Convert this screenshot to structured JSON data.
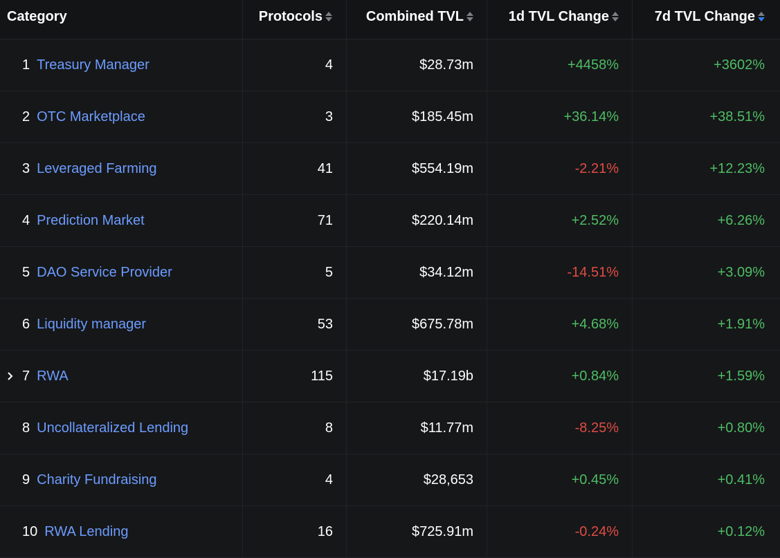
{
  "columns": {
    "category": "Category",
    "protocols": "Protocols",
    "combined_tvl": "Combined TVL",
    "change_1d": "1d TVL Change",
    "change_7d": "7d TVL Change"
  },
  "sort": {
    "column": "change_7d",
    "direction": "desc",
    "active_color": "#2f80ed"
  },
  "colors": {
    "link": "#6c9cff",
    "positive": "#4ebd64",
    "negative": "#e04c44"
  },
  "rows": [
    {
      "rank": "1",
      "name": "Treasury Manager",
      "protocols": "4",
      "tvl": "$28.73m",
      "change_1d": "+4458%",
      "change_7d": "+3602%",
      "expandable": false
    },
    {
      "rank": "2",
      "name": "OTC Marketplace",
      "protocols": "3",
      "tvl": "$185.45m",
      "change_1d": "+36.14%",
      "change_7d": "+38.51%",
      "expandable": false
    },
    {
      "rank": "3",
      "name": "Leveraged Farming",
      "protocols": "41",
      "tvl": "$554.19m",
      "change_1d": "-2.21%",
      "change_7d": "+12.23%",
      "expandable": false
    },
    {
      "rank": "4",
      "name": "Prediction Market",
      "protocols": "71",
      "tvl": "$220.14m",
      "change_1d": "+2.52%",
      "change_7d": "+6.26%",
      "expandable": false
    },
    {
      "rank": "5",
      "name": "DAO Service Provider",
      "protocols": "5",
      "tvl": "$34.12m",
      "change_1d": "-14.51%",
      "change_7d": "+3.09%",
      "expandable": false
    },
    {
      "rank": "6",
      "name": "Liquidity manager",
      "protocols": "53",
      "tvl": "$675.78m",
      "change_1d": "+4.68%",
      "change_7d": "+1.91%",
      "expandable": false
    },
    {
      "rank": "7",
      "name": "RWA",
      "protocols": "115",
      "tvl": "$17.19b",
      "change_1d": "+0.84%",
      "change_7d": "+1.59%",
      "expandable": true,
      "expand_icon": "chevron-right-icon"
    },
    {
      "rank": "8",
      "name": "Uncollateralized Lending",
      "protocols": "8",
      "tvl": "$11.77m",
      "change_1d": "-8.25%",
      "change_7d": "+0.80%",
      "expandable": false
    },
    {
      "rank": "9",
      "name": "Charity Fundraising",
      "protocols": "4",
      "tvl": "$28,653",
      "change_1d": "+0.45%",
      "change_7d": "+0.41%",
      "expandable": false
    },
    {
      "rank": "10",
      "name": "RWA Lending",
      "protocols": "16",
      "tvl": "$725.91m",
      "change_1d": "-0.24%",
      "change_7d": "+0.12%",
      "expandable": false
    }
  ]
}
